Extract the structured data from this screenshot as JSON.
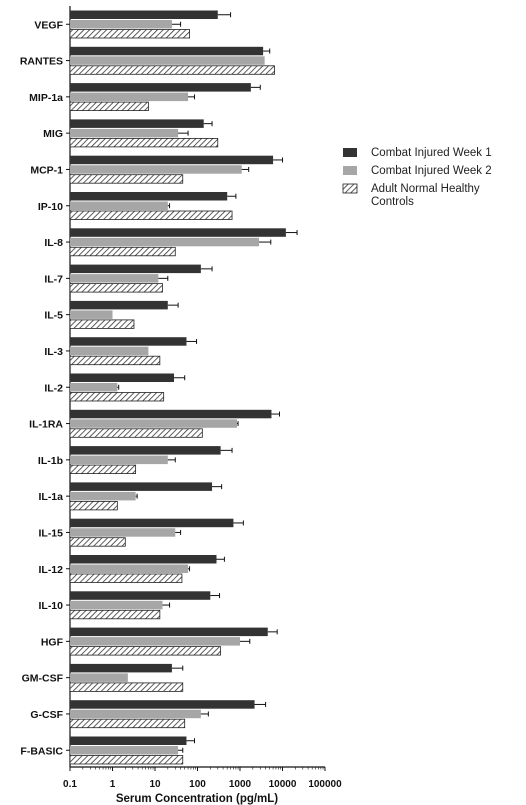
{
  "chart_data": {
    "type": "bar",
    "orientation": "horizontal",
    "x_scale": "log",
    "xlim": [
      0.1,
      100000
    ],
    "xticks": [
      "0.1",
      "1",
      "10",
      "100",
      "1000",
      "10000",
      "100000"
    ],
    "xlabel": "Serum Concentration (pg/mL)",
    "ylabel": "",
    "title": "",
    "grid": false,
    "legend_position": "right",
    "categories": [
      "VEGF",
      "RANTES",
      "MIP-1a",
      "MIG",
      "MCP-1",
      "IP-10",
      "IL-8",
      "IL-7",
      "IL-5",
      "IL-3",
      "IL-2",
      "IL-1RA",
      "IL-1b",
      "IL-1a",
      "IL-15",
      "IL-12",
      "IL-10",
      "HGF",
      "GM-CSF",
      "G-CSF",
      "F-BASIC"
    ],
    "series": [
      {
        "name": "Combat Injured Week 1",
        "color": "#333333",
        "pattern": "solid",
        "values": [
          300,
          3500,
          1800,
          140,
          6000,
          500,
          12000,
          120,
          20,
          55,
          28,
          5500,
          350,
          220,
          700,
          280,
          200,
          4500,
          25,
          2200,
          55
        ],
        "error_plus": [
          300,
          1500,
          1200,
          80,
          4000,
          300,
          10000,
          100,
          15,
          40,
          22,
          3000,
          300,
          150,
          500,
          150,
          130,
          3000,
          20,
          1800,
          30
        ]
      },
      {
        "name": "Combat Injured Week 2",
        "color": "#a6a6a6",
        "pattern": "solid",
        "values": [
          25,
          3800,
          60,
          35,
          1100,
          20,
          2800,
          12,
          1,
          7,
          1.3,
          850,
          20,
          3.5,
          30,
          60,
          15,
          1000,
          2.3,
          120,
          35
        ],
        "error_plus": [
          15,
          0,
          25,
          25,
          500,
          2,
          2500,
          8,
          0,
          0,
          0.1,
          50,
          10,
          0.3,
          10,
          5,
          7,
          700,
          0,
          60,
          10
        ]
      },
      {
        "name": "Adult Normal Healthy Controls",
        "color": "#ffffff",
        "pattern": "hatched",
        "values": [
          65,
          6500,
          7,
          300,
          45,
          650,
          30,
          15,
          3.2,
          13,
          16,
          130,
          3.5,
          1.3,
          2,
          43,
          13,
          350,
          45,
          50,
          45
        ],
        "error_plus": [
          0,
          0,
          0,
          0,
          0,
          0,
          0,
          0,
          0,
          0,
          0,
          0,
          0,
          0,
          0,
          0,
          0,
          0,
          0,
          0,
          0
        ]
      }
    ]
  }
}
